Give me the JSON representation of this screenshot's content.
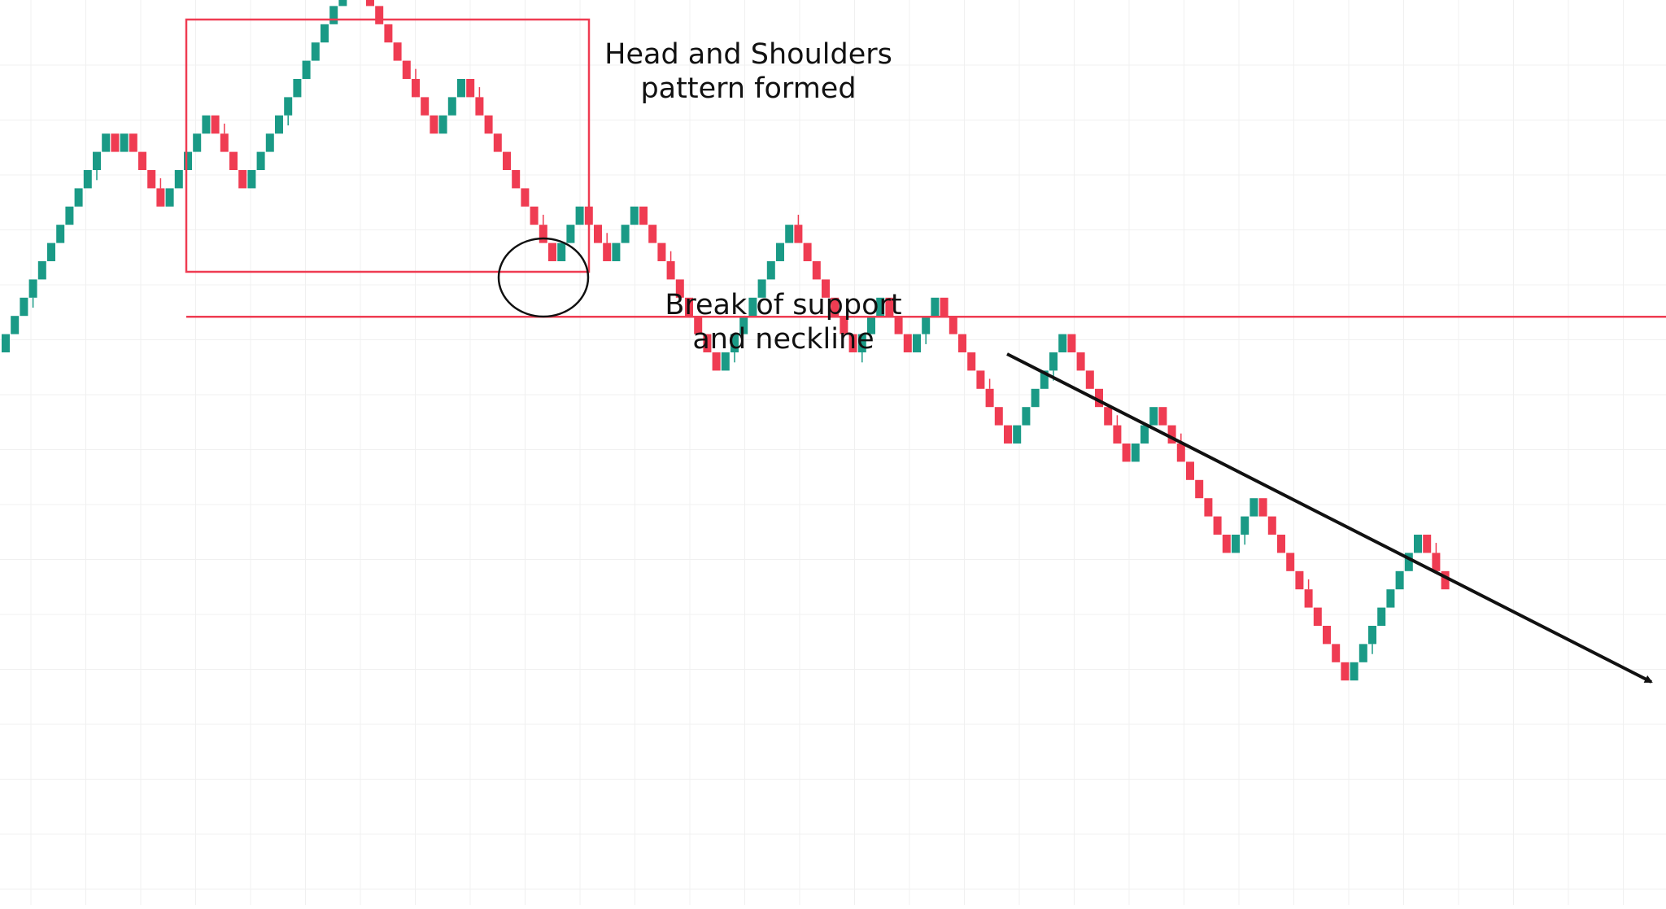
{
  "annotations": {
    "pattern_line1": "Head and Shoulders",
    "pattern_line2": "pattern formed",
    "break_line1": "Break of support",
    "break_line2": "and neckline"
  },
  "colors": {
    "up": "#1a9a86",
    "down": "#ef3c52",
    "grid": "#f0f0f0",
    "pattern_box": "#ef3c52",
    "neckline": "#ef3c52",
    "circle": "#111111",
    "trend_arrow": "#111111",
    "text": "#111111",
    "background": "#ffffff"
  },
  "chart_data": {
    "type": "renko",
    "title": "",
    "xlabel": "",
    "ylabel": "",
    "axes_visible": false,
    "grid": true,
    "box_size": 1,
    "start_level": 0,
    "brick_directions": "UUUUUUUUUUUUDUDDDDUUUUUDDDDUUUUUUUUUUUUDDDDDDDDDUUUDDDDDDDDDDUUUDDDUUUDDDDDDDDDUUUUUUUUDDDDDDDUUUDDDUUUDDDDDDDDUUUUUUDDDDDDDUUUDDDDDDDDUUUDDDDDDDDDDUUUUUUUUDDD",
    "neckline_level": 2,
    "pattern": {
      "name": "head-and-shoulders",
      "left_shoulder_peak": 12,
      "head_peak": 17,
      "right_shoulder_peak": 11,
      "neckline": 2
    },
    "trend": "down"
  }
}
